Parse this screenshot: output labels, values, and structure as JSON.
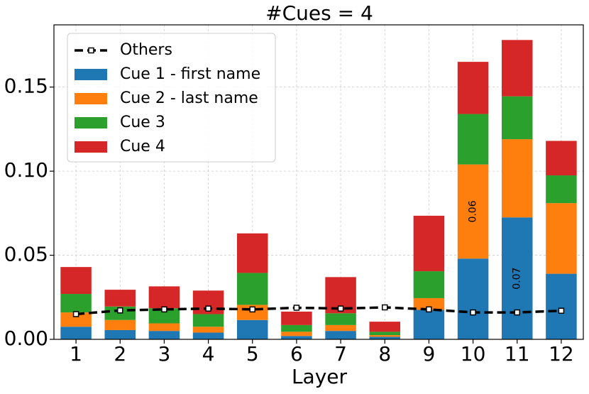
{
  "chart_data": {
    "type": "bar",
    "stacked": true,
    "title": "#Cues = 4",
    "xlabel": "Layer",
    "ylabel": "",
    "categories": [
      "1",
      "2",
      "3",
      "4",
      "5",
      "6",
      "7",
      "8",
      "9",
      "10",
      "11",
      "12"
    ],
    "ylim": [
      0,
      0.187
    ],
    "yticks": [
      0.0,
      0.05,
      0.1,
      0.15
    ],
    "ytick_labels": [
      "0.00",
      "0.05",
      "0.10",
      "0.15"
    ],
    "grid": true,
    "legend_position": "top-left",
    "series": [
      {
        "name": "Cue 1 - first name",
        "color": "#1f77b4",
        "values": [
          0.0075,
          0.0055,
          0.005,
          0.004,
          0.0115,
          0.002,
          0.005,
          0.0015,
          0.0175,
          0.048,
          0.0725,
          0.039
        ]
      },
      {
        "name": "Cue 2 - last name",
        "color": "#ff7f0e",
        "values": [
          0.0085,
          0.006,
          0.0045,
          0.0035,
          0.009,
          0.0025,
          0.0035,
          0.001,
          0.007,
          0.056,
          0.0465,
          0.042
        ]
      },
      {
        "name": "Cue 3",
        "color": "#2ca02c",
        "values": [
          0.011,
          0.008,
          0.009,
          0.0075,
          0.019,
          0.004,
          0.007,
          0.002,
          0.016,
          0.03,
          0.0255,
          0.0165
        ]
      },
      {
        "name": "Cue 4",
        "color": "#d62728",
        "values": [
          0.016,
          0.01,
          0.013,
          0.014,
          0.0235,
          0.008,
          0.0215,
          0.006,
          0.033,
          0.031,
          0.0335,
          0.0205
        ]
      }
    ],
    "line_series": {
      "name": "Others",
      "color": "#000000",
      "values": [
        0.015,
        0.0172,
        0.0178,
        0.0183,
        0.0178,
        0.0188,
        0.0183,
        0.019,
        0.0178,
        0.016,
        0.016,
        0.017
      ]
    },
    "annotations": [
      {
        "text": "0.06",
        "category": "10",
        "series": "Cue 2 - last name"
      },
      {
        "text": "0.07",
        "category": "11",
        "series": "Cue 1 - first name"
      }
    ]
  }
}
